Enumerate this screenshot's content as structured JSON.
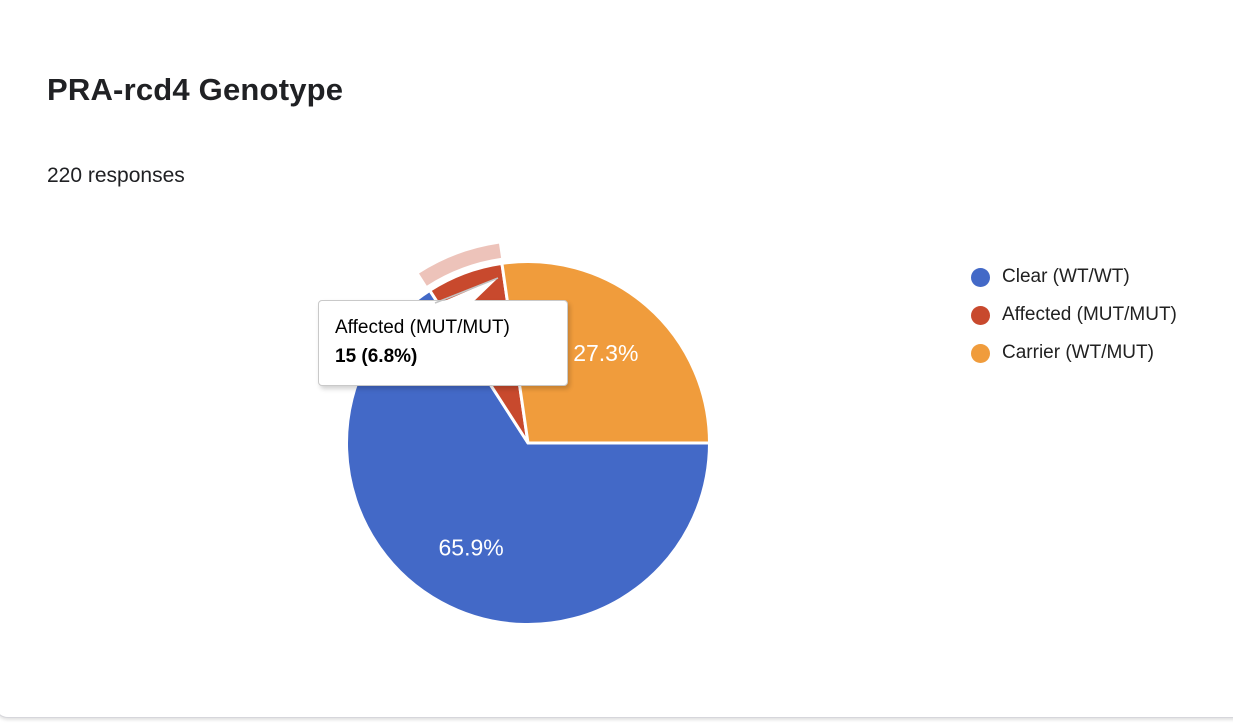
{
  "header": {
    "title": "PRA-rcd4 Genotype",
    "responses": "220 responses"
  },
  "chart_data": {
    "type": "pie",
    "title": "PRA-rcd4 Genotype",
    "total_responses": 220,
    "start_angle_deg": 90,
    "direction": "clockwise",
    "legend_position": "right",
    "slices": [
      {
        "label": "Clear (WT/WT)",
        "percent": 65.9,
        "data_label": "65.9%",
        "color": "#4369C7",
        "highlighted": false
      },
      {
        "label": "Affected (MUT/MUT)",
        "percent": 6.8,
        "count": 15,
        "data_label": "",
        "color": "#C8492D",
        "highlighted": true
      },
      {
        "label": "Carrier (WT/MUT)",
        "percent": 27.3,
        "data_label": "27.3%",
        "color": "#F09C3C",
        "highlighted": false
      }
    ]
  },
  "tooltip": {
    "title": "Affected (MUT/MUT)",
    "value": "15 (6.8%)"
  }
}
